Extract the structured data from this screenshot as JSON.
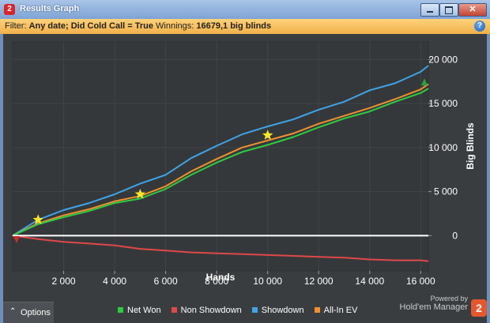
{
  "window": {
    "title": "Results Graph",
    "app_icon_label": "2"
  },
  "filter": {
    "prefix": "Filter:",
    "value": "Any date; Did Cold Call = True",
    "winnings_label": "Winnings:",
    "winnings_value": "16679,1 big blinds"
  },
  "options": {
    "label": "Options"
  },
  "legend": [
    {
      "label": "Net Won",
      "color": "#2ecc40"
    },
    {
      "label": "Non Showdown",
      "color": "#e04848"
    },
    {
      "label": "Showdown",
      "color": "#3fa4e8"
    },
    {
      "label": "All-In EV",
      "color": "#f0902f"
    }
  ],
  "branding": {
    "powered_by": "Powered by",
    "product": "Hold'em Manager",
    "logo_label": "2"
  },
  "colors": {
    "background": "#3a3d40",
    "plot_bg": "#35383b",
    "accent": "#f0b04a"
  },
  "chart_data": {
    "type": "line",
    "xlabel": "Hands",
    "ylabel": "Big Blinds",
    "xlim": [
      0,
      16300
    ],
    "ylim": [
      -4000,
      22000
    ],
    "x_ticks": [
      2000,
      4000,
      6000,
      8000,
      10000,
      12000,
      14000,
      16000
    ],
    "x_tick_labels": [
      "2 000",
      "4 000",
      "6 000",
      "8 000",
      "10 000",
      "12 000",
      "14 000",
      "16 000"
    ],
    "y_ticks": [
      0,
      5000,
      10000,
      15000,
      20000
    ],
    "y_tick_labels": [
      "0",
      "5 000",
      "10 000",
      "15 000",
      "20 000"
    ],
    "zero_line": true,
    "series": [
      {
        "name": "Showdown",
        "color": "#3fa4e8",
        "x": [
          0,
          1000,
          2000,
          3000,
          4000,
          5000,
          6000,
          7000,
          8000,
          9000,
          10000,
          11000,
          12000,
          13000,
          14000,
          15000,
          16000,
          16300
        ],
        "y": [
          0,
          1800,
          2900,
          3700,
          4700,
          5900,
          6900,
          8800,
          10200,
          11500,
          12400,
          13200,
          14300,
          15200,
          16500,
          17300,
          18600,
          19300
        ]
      },
      {
        "name": "All-In EV",
        "color": "#f0902f",
        "x": [
          0,
          1000,
          2000,
          3000,
          4000,
          5000,
          6000,
          7000,
          8000,
          9000,
          10000,
          11000,
          12000,
          13000,
          14000,
          15000,
          16000,
          16300
        ],
        "y": [
          0,
          1400,
          2300,
          3000,
          3900,
          4500,
          5600,
          7300,
          8700,
          10000,
          10800,
          11600,
          12700,
          13600,
          14500,
          15500,
          16600,
          17200
        ]
      },
      {
        "name": "Net Won",
        "color": "#2ecc40",
        "x": [
          0,
          1000,
          2000,
          3000,
          4000,
          5000,
          6000,
          7000,
          8000,
          9000,
          10000,
          11000,
          12000,
          13000,
          14000,
          15000,
          16000,
          16300
        ],
        "y": [
          0,
          1300,
          2100,
          2800,
          3700,
          4200,
          5300,
          6900,
          8300,
          9500,
          10300,
          11200,
          12300,
          13300,
          14100,
          15200,
          16200,
          16700
        ]
      },
      {
        "name": "Non Showdown",
        "color": "#e04848",
        "x": [
          0,
          1000,
          2000,
          3000,
          4000,
          5000,
          6000,
          7000,
          8000,
          9000,
          10000,
          11000,
          12000,
          13000,
          14000,
          15000,
          16000,
          16300
        ],
        "y": [
          0,
          -400,
          -700,
          -900,
          -1100,
          -1500,
          -1700,
          -1900,
          -2000,
          -2100,
          -2200,
          -2300,
          -2400,
          -2500,
          -2700,
          -2800,
          -2800,
          -2900
        ]
      }
    ],
    "markers": [
      {
        "type": "star",
        "x": 1000,
        "y": 1800,
        "color": "#f5e82a"
      },
      {
        "type": "star",
        "x": 5000,
        "y": 4700,
        "color": "#f5e82a"
      },
      {
        "type": "star",
        "x": 10000,
        "y": 11400,
        "color": "#f5e82a"
      },
      {
        "type": "down-triangle",
        "x": 0,
        "y": -500,
        "color": "#d22a2a"
      },
      {
        "type": "up-triangle",
        "x": 16300,
        "y": 17500,
        "color": "#1fa83a"
      }
    ]
  }
}
